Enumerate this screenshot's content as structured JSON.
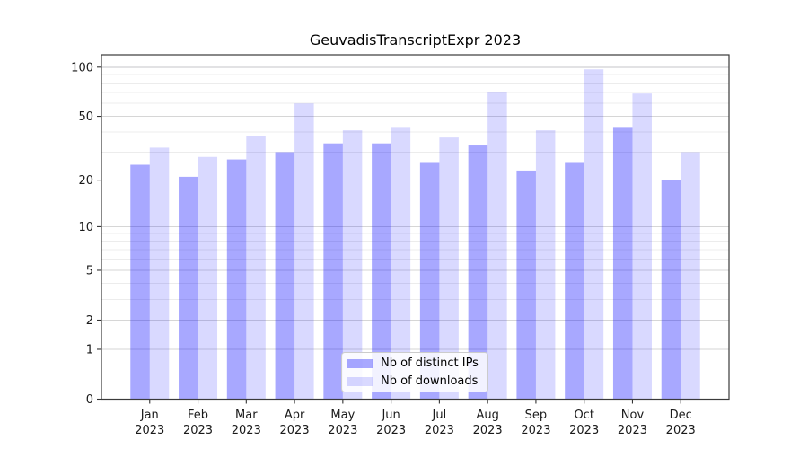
{
  "figure": {
    "background": "#ffffff"
  },
  "chart_data": {
    "type": "bar",
    "title": "GeuvadisTranscriptExpr 2023",
    "xlabel": "",
    "ylabel": "",
    "categories": [
      "Jan 2023",
      "Feb 2023",
      "Mar 2023",
      "Apr 2023",
      "May 2023",
      "Jun 2023",
      "Jul 2023",
      "Aug 2023",
      "Sep 2023",
      "Oct 2023",
      "Nov 2023",
      "Dec 2023"
    ],
    "series": [
      {
        "name": "Nb of distinct IPs",
        "color": "rgba(0,0,255,0.34)",
        "values": [
          25,
          21,
          27,
          30,
          34,
          34,
          26,
          33,
          23,
          26,
          43,
          20
        ]
      },
      {
        "name": "Nb of downloads",
        "color": "rgba(0,0,255,0.15)",
        "values": [
          32,
          28,
          38,
          60,
          41,
          43,
          37,
          70,
          41,
          97,
          69,
          30
        ]
      }
    ],
    "yscale": "log1p",
    "ylim": [
      0,
      119
    ],
    "y_major_ticks": [
      0,
      1,
      2,
      5,
      10,
      20,
      50,
      100
    ],
    "y_minor_ticks": [
      3,
      4,
      6,
      7,
      8,
      9,
      30,
      40,
      60,
      70,
      80,
      90
    ],
    "grid": true,
    "legend_position": "lower center",
    "colors": {
      "major_grid": "#d6d6d6",
      "minor_grid": "#ececec",
      "spine": "#3a3a3a",
      "tick": "#333333",
      "tick_label": "#1a1a1a"
    }
  }
}
